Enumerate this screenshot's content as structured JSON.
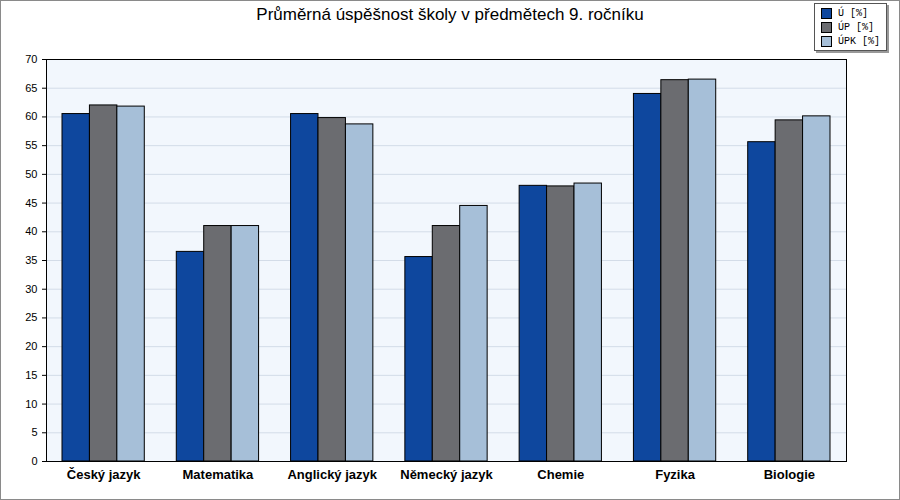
{
  "chart_data": {
    "type": "bar",
    "title": "Průměrná úspěšnost školy v předmětech 9. ročníku",
    "categories": [
      "Český jazyk",
      "Matematika",
      "Anglický jazyk",
      "Německý jazyk",
      "Chemie",
      "Fyzika",
      "Biologie"
    ],
    "series": [
      {
        "name": "Ú [%]",
        "color": "#0e479e",
        "values": [
          60.5,
          36.5,
          60.5,
          35.6,
          48.0,
          64.0,
          55.6
        ]
      },
      {
        "name": "ÚP [%]",
        "color": "#6b6c70",
        "values": [
          62.0,
          41.0,
          59.8,
          41.0,
          47.9,
          66.4,
          59.4
        ]
      },
      {
        "name": "ÚPK [%]",
        "color": "#a6bfd8",
        "values": [
          61.8,
          41.0,
          58.7,
          44.5,
          48.4,
          66.5,
          60.1
        ]
      }
    ],
    "ylim": [
      0,
      70
    ],
    "yticks": [
      0,
      5,
      10,
      15,
      20,
      25,
      30,
      35,
      40,
      45,
      50,
      55,
      60,
      65,
      70
    ],
    "grid": true,
    "legend": "top-right"
  }
}
